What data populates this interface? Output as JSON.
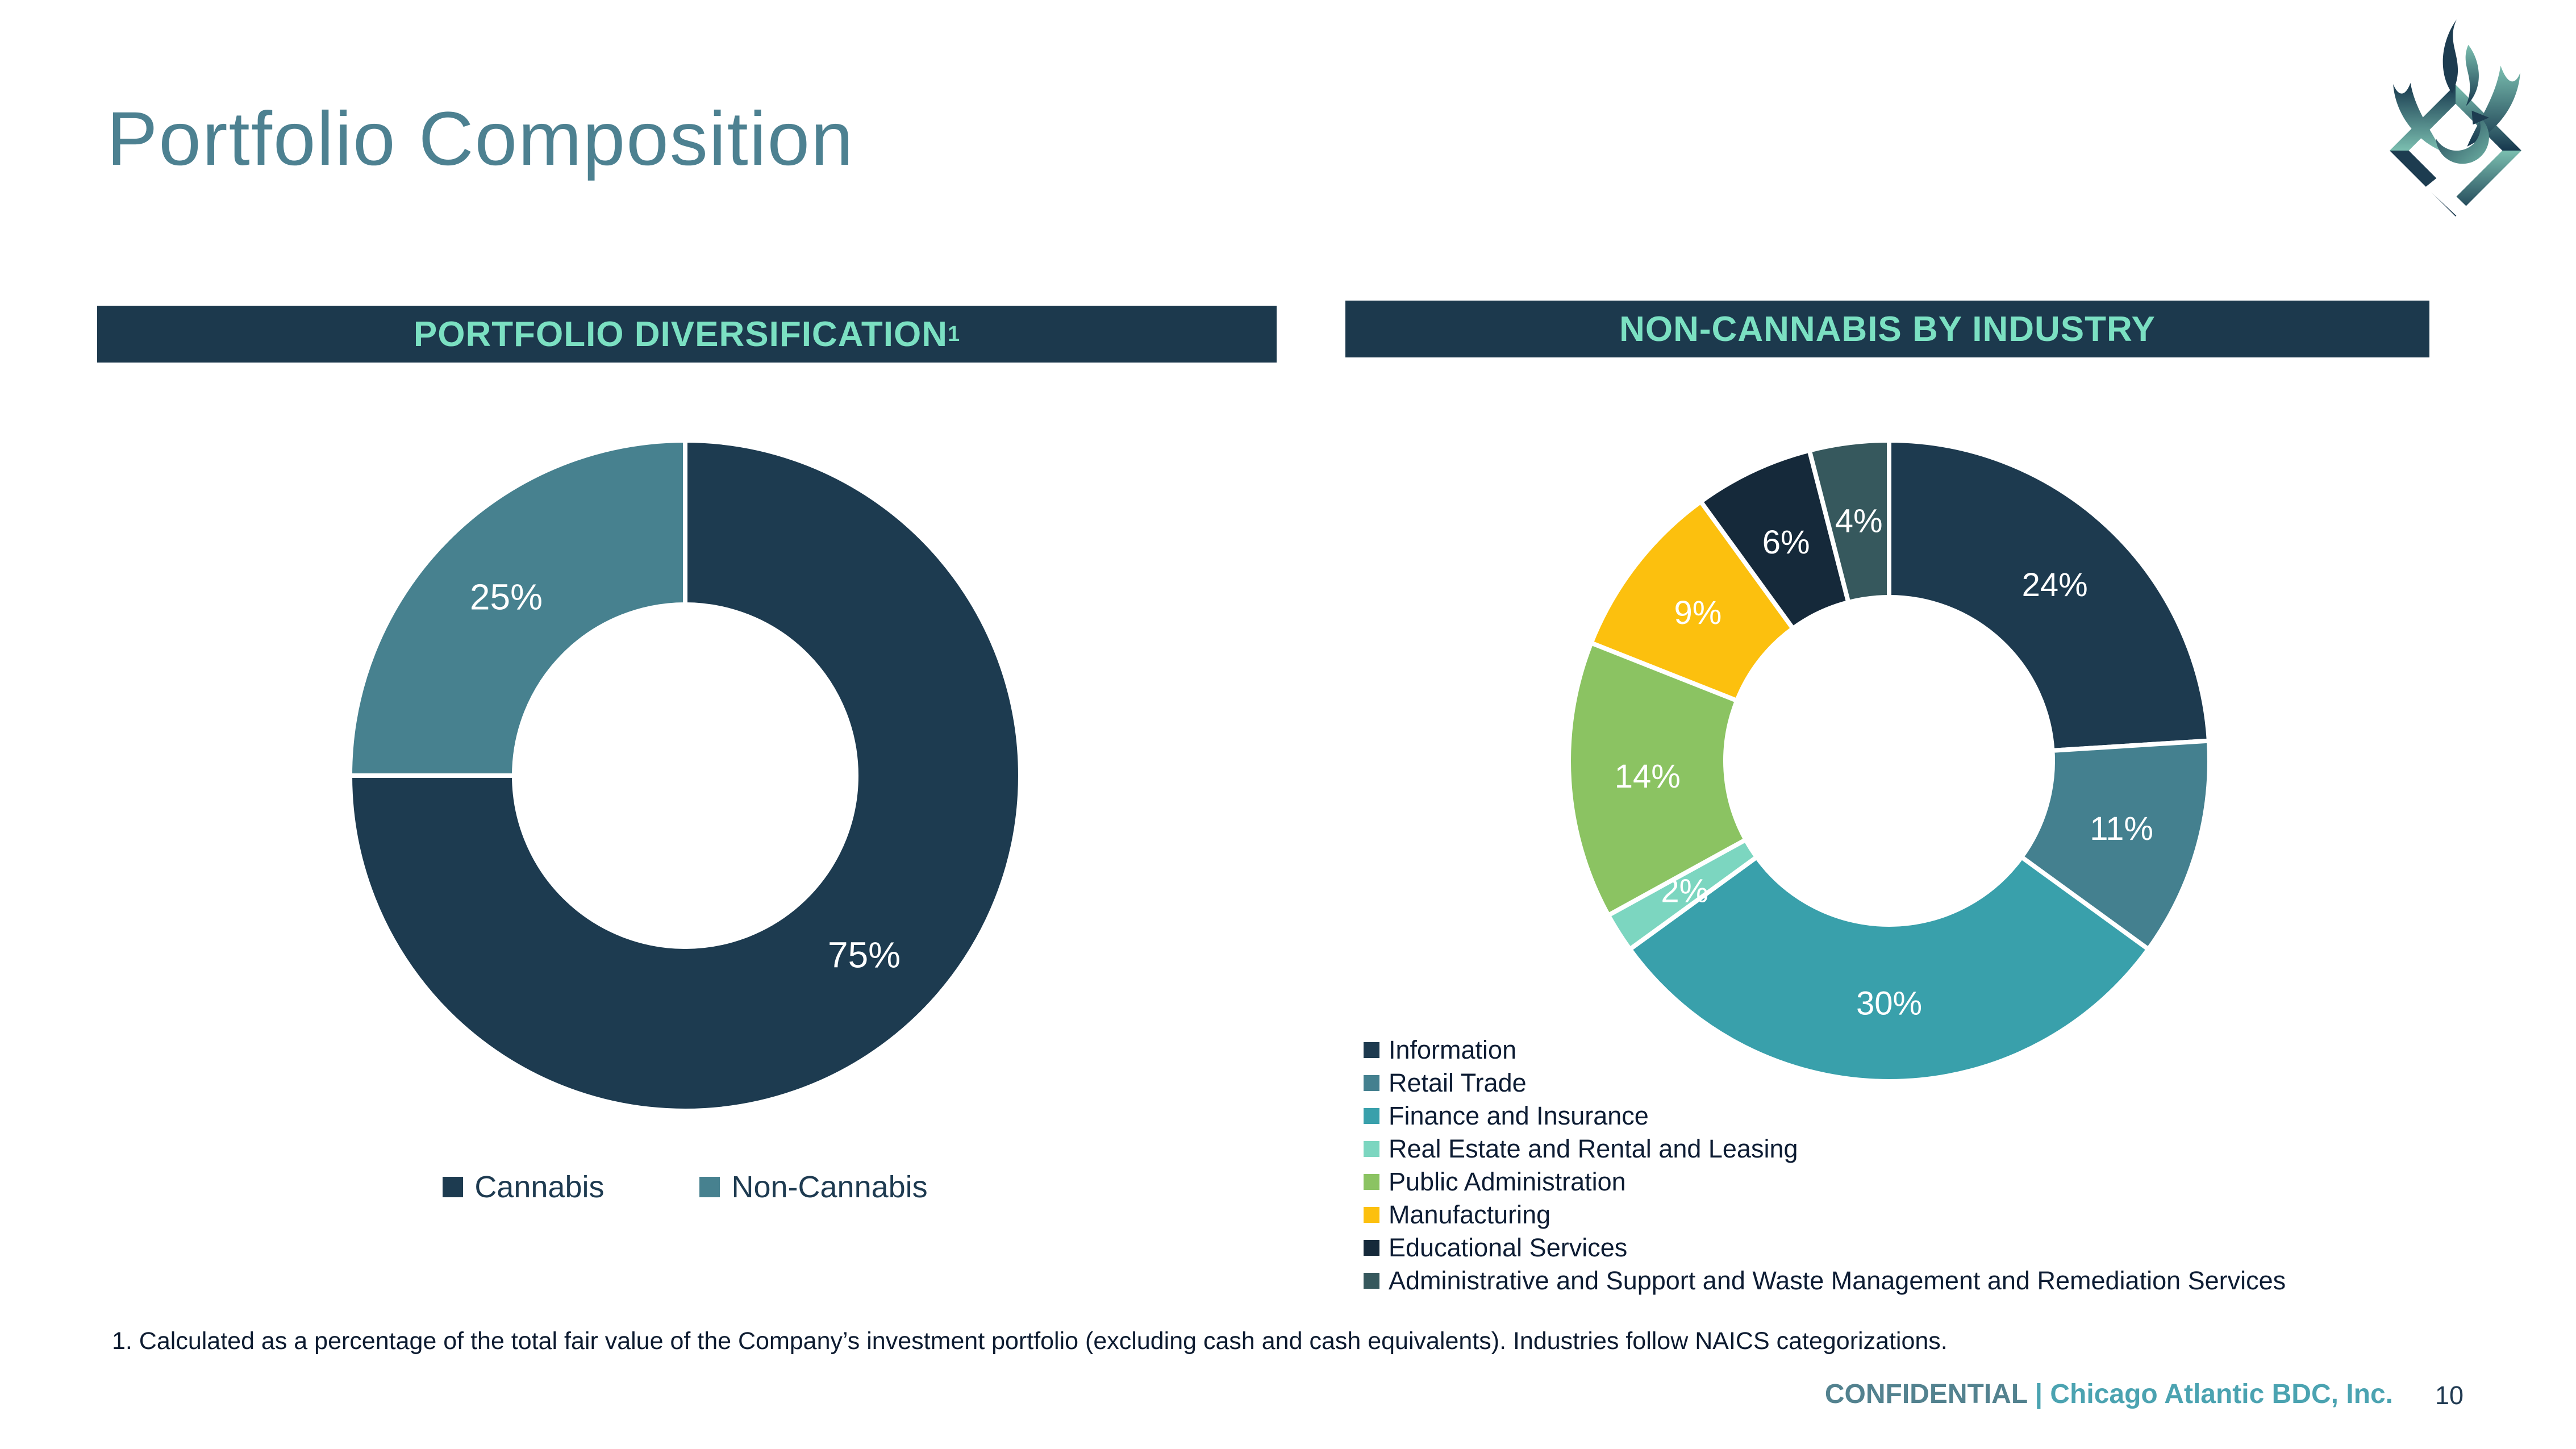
{
  "slide": {
    "title": "Portfolio Composition",
    "footnote": "1. Calculated as a percentage of the total fair value of the Company’s investment portfolio (excluding cash and cash equivalents). Industries follow NAICS categorizations.",
    "footer": {
      "confidential": "CONFIDENTIAL",
      "company": " | Chicago Atlantic BDC, Inc.",
      "page": "10"
    },
    "logo_name": "phoenix-flame-logo",
    "colors": {
      "header_bar": "#1c394d",
      "header_text": "#7be0c2",
      "title_text": "#4d8191",
      "footer_accent": "#4ba3b1",
      "slice_label_text": "#ffffff"
    }
  },
  "chart_data": [
    {
      "type": "donut",
      "title": "PORTFOLIO DIVERSIFICATION",
      "title_superscript": "1",
      "categories": [
        "Cannabis",
        "Non-Cannabis"
      ],
      "values": [
        75,
        25
      ],
      "labels": [
        "75%",
        "25%"
      ],
      "colors": [
        "#1d3b50",
        "#47818f"
      ],
      "start_angle_deg": 0,
      "direction": "clockwise",
      "legend_position": "bottom-center",
      "hole_ratio": 0.51
    },
    {
      "type": "donut",
      "title": "NON-CANNABIS BY INDUSTRY",
      "title_superscript": "",
      "categories": [
        "Information",
        "Retail Trade",
        "Finance and Insurance",
        "Real Estate and Rental and Leasing",
        "Public Administration",
        "Manufacturing",
        "Educational Services",
        "Administrative and Support and Waste Management and Remediation Services"
      ],
      "values": [
        24,
        11,
        30,
        2,
        14,
        9,
        6,
        4
      ],
      "labels": [
        "24%",
        "11%",
        "30%",
        "2%",
        "14%",
        "9%",
        "6%",
        "4%"
      ],
      "colors": [
        "#1d3a4f",
        "#44808f",
        "#39a0ab",
        "#7cd6c0",
        "#8bc362",
        "#fcc00e",
        "#15293a",
        "#36585d"
      ],
      "start_angle_deg": 0,
      "direction": "clockwise",
      "legend_position": "bottom-left",
      "hole_ratio": 0.51
    }
  ]
}
